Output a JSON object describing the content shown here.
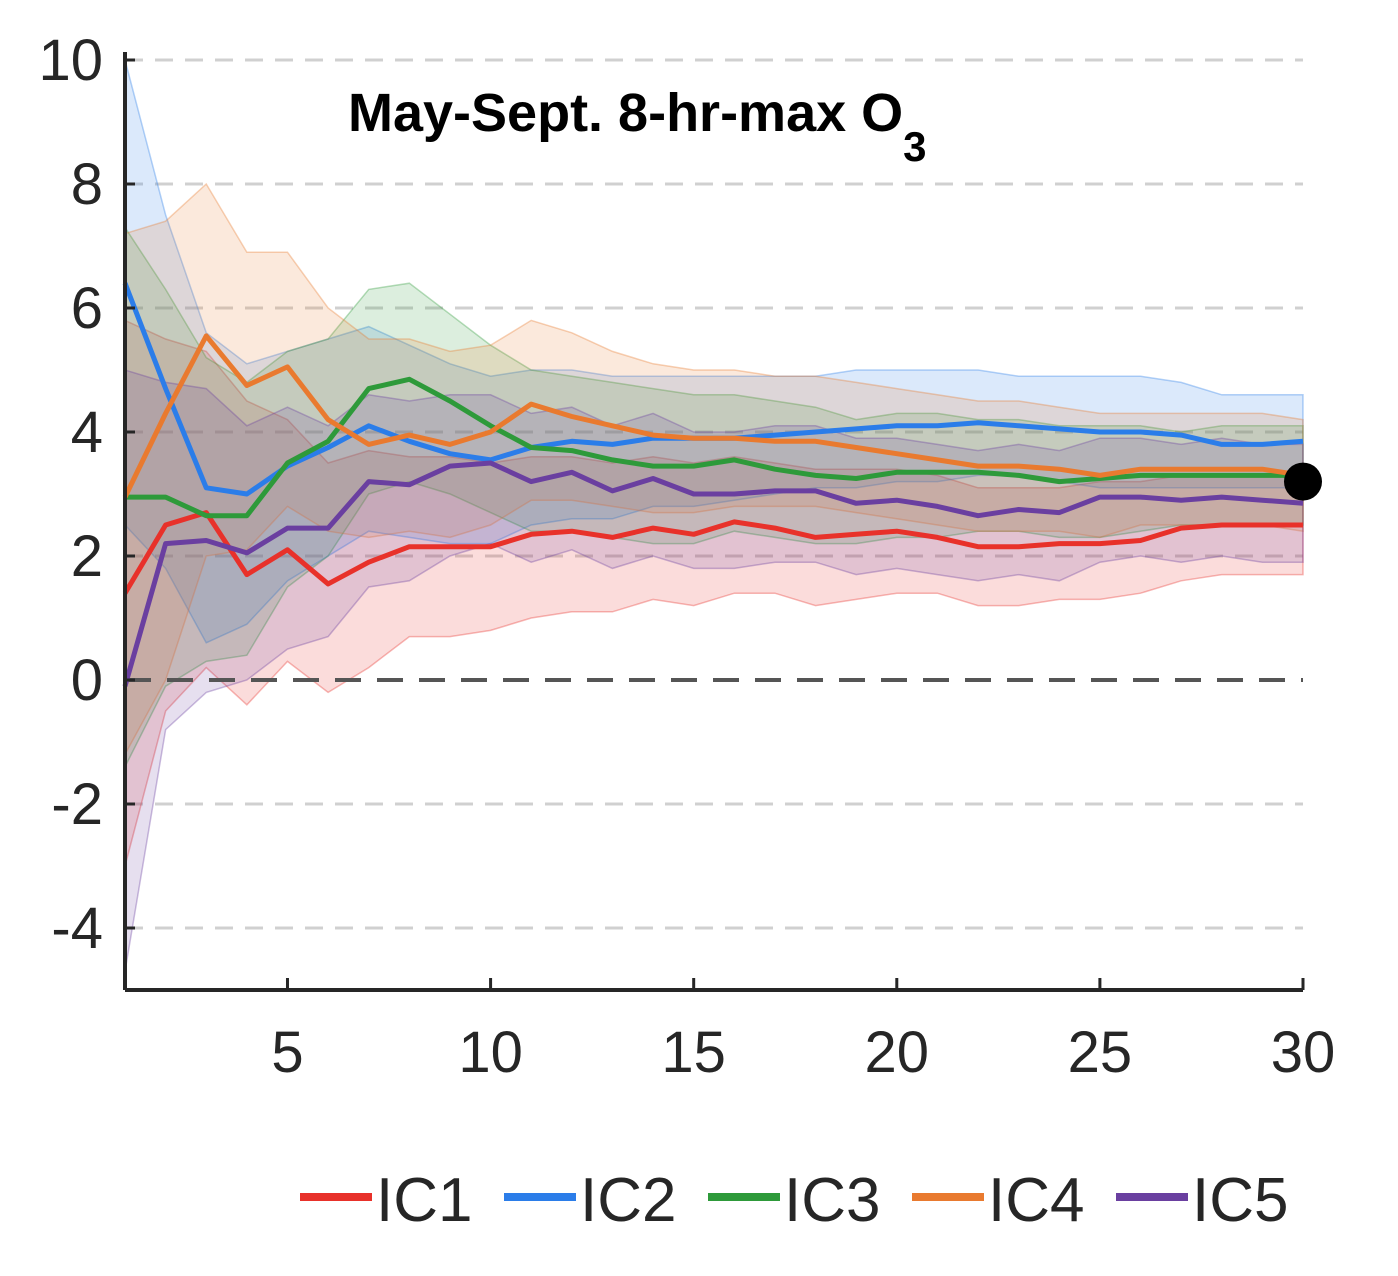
{
  "chart_data": {
    "type": "line",
    "title": "May-Sept. 8-hr-max O",
    "title_subscript": "3",
    "xlim": [
      1,
      30
    ],
    "ylim": [
      -5,
      10
    ],
    "x_ticks": [
      5,
      10,
      15,
      20,
      25,
      30
    ],
    "y_ticks": [
      10,
      8,
      6,
      4,
      2,
      0,
      -2,
      -4
    ],
    "x_tick_labels": [
      "5",
      "10",
      "15",
      "20",
      "25",
      "30"
    ],
    "y_tick_labels": [
      "10",
      "8",
      "6",
      "4",
      "2",
      "0",
      "-2",
      "-4"
    ],
    "grid": "horizontal dashed",
    "legend_position": "bottom",
    "x": [
      1,
      2,
      3,
      4,
      5,
      6,
      7,
      8,
      9,
      10,
      11,
      12,
      13,
      14,
      15,
      16,
      17,
      18,
      19,
      20,
      21,
      22,
      23,
      24,
      25,
      26,
      27,
      28,
      29,
      30
    ],
    "series": [
      {
        "name": "IC1",
        "color": "#e8312a",
        "values": [
          1.4,
          2.5,
          2.7,
          1.7,
          2.1,
          1.55,
          1.9,
          2.15,
          2.15,
          2.15,
          2.35,
          2.4,
          2.3,
          2.45,
          2.35,
          2.55,
          2.45,
          2.3,
          2.35,
          2.4,
          2.3,
          2.15,
          2.15,
          2.2,
          2.2,
          2.25,
          2.45,
          2.5,
          2.5,
          2.5
        ],
        "band_upper": [
          5.8,
          5.5,
          5.3,
          4.5,
          4.2,
          3.5,
          3.7,
          3.6,
          3.6,
          3.5,
          3.6,
          3.6,
          3.5,
          3.6,
          3.5,
          3.6,
          3.5,
          3.4,
          3.4,
          3.4,
          3.3,
          3.1,
          3.1,
          3.1,
          3.2,
          3.2,
          3.3,
          3.3,
          3.3,
          3.3
        ],
        "band_lower": [
          -3.0,
          -0.5,
          0.2,
          -0.4,
          0.3,
          -0.2,
          0.2,
          0.7,
          0.7,
          0.8,
          1.0,
          1.1,
          1.1,
          1.3,
          1.2,
          1.4,
          1.4,
          1.2,
          1.3,
          1.4,
          1.4,
          1.2,
          1.2,
          1.3,
          1.3,
          1.4,
          1.6,
          1.7,
          1.7,
          1.7
        ]
      },
      {
        "name": "IC2",
        "color": "#2b7de9",
        "values": [
          6.4,
          4.7,
          3.1,
          3.0,
          3.45,
          3.75,
          4.1,
          3.85,
          3.65,
          3.55,
          3.75,
          3.85,
          3.8,
          3.9,
          3.9,
          3.9,
          3.95,
          4.0,
          4.05,
          4.1,
          4.1,
          4.15,
          4.1,
          4.05,
          4.0,
          4.0,
          3.95,
          3.8,
          3.8,
          3.85
        ],
        "band_upper": [
          10.0,
          7.5,
          5.6,
          5.1,
          5.3,
          5.5,
          5.7,
          5.4,
          5.1,
          4.9,
          5.0,
          5.0,
          4.9,
          4.9,
          4.9,
          4.9,
          4.9,
          4.9,
          5.0,
          5.0,
          5.0,
          5.0,
          4.9,
          4.9,
          4.9,
          4.9,
          4.8,
          4.6,
          4.6,
          4.6
        ],
        "band_lower": [
          2.5,
          1.8,
          0.6,
          0.9,
          1.6,
          2.0,
          2.4,
          2.3,
          2.2,
          2.2,
          2.5,
          2.6,
          2.6,
          2.8,
          2.8,
          2.9,
          3.0,
          3.1,
          3.1,
          3.2,
          3.2,
          3.3,
          3.3,
          3.2,
          3.1,
          3.1,
          3.1,
          3.1,
          3.1,
          3.1
        ]
      },
      {
        "name": "IC3",
        "color": "#2e9a3a",
        "values": [
          2.95,
          2.95,
          2.65,
          2.65,
          3.5,
          3.85,
          4.7,
          4.85,
          4.5,
          4.1,
          3.75,
          3.7,
          3.55,
          3.45,
          3.45,
          3.55,
          3.4,
          3.3,
          3.25,
          3.35,
          3.35,
          3.35,
          3.3,
          3.2,
          3.25,
          3.3,
          3.3,
          3.3,
          3.3,
          3.3
        ],
        "band_upper": [
          7.3,
          6.3,
          5.2,
          4.8,
          5.3,
          5.5,
          6.3,
          6.4,
          5.9,
          5.4,
          5.0,
          4.9,
          4.8,
          4.7,
          4.6,
          4.6,
          4.5,
          4.4,
          4.2,
          4.3,
          4.3,
          4.2,
          4.2,
          4.1,
          4.1,
          4.1,
          4.0,
          4.1,
          4.1,
          4.1
        ],
        "band_lower": [
          -1.4,
          -0.1,
          0.3,
          0.4,
          1.5,
          2.0,
          3.0,
          3.2,
          3.0,
          2.7,
          2.4,
          2.4,
          2.3,
          2.2,
          2.2,
          2.4,
          2.3,
          2.2,
          2.2,
          2.3,
          2.3,
          2.4,
          2.4,
          2.3,
          2.3,
          2.4,
          2.5,
          2.5,
          2.5,
          2.5
        ]
      },
      {
        "name": "IC4",
        "color": "#e97a2f",
        "values": [
          2.95,
          4.3,
          5.55,
          4.75,
          5.05,
          4.2,
          3.8,
          3.95,
          3.8,
          4.0,
          4.45,
          4.25,
          4.1,
          3.95,
          3.9,
          3.9,
          3.85,
          3.85,
          3.75,
          3.65,
          3.55,
          3.45,
          3.45,
          3.4,
          3.3,
          3.4,
          3.4,
          3.4,
          3.4,
          3.3
        ],
        "band_upper": [
          7.2,
          7.4,
          8.0,
          6.9,
          6.9,
          6.0,
          5.5,
          5.5,
          5.3,
          5.4,
          5.8,
          5.6,
          5.3,
          5.1,
          5.0,
          5.0,
          4.9,
          4.9,
          4.8,
          4.7,
          4.6,
          4.5,
          4.5,
          4.4,
          4.3,
          4.3,
          4.3,
          4.3,
          4.3,
          4.2
        ],
        "band_lower": [
          -1.2,
          0.0,
          2.0,
          2.1,
          2.8,
          2.4,
          2.3,
          2.4,
          2.3,
          2.5,
          2.9,
          2.9,
          2.8,
          2.7,
          2.7,
          2.8,
          2.8,
          2.8,
          2.7,
          2.6,
          2.5,
          2.4,
          2.4,
          2.4,
          2.3,
          2.5,
          2.5,
          2.5,
          2.5,
          2.4
        ]
      },
      {
        "name": "IC5",
        "color": "#6a3fa0",
        "values": [
          -0.1,
          2.2,
          2.25,
          2.05,
          2.45,
          2.45,
          3.2,
          3.15,
          3.45,
          3.5,
          3.2,
          3.35,
          3.05,
          3.25,
          3.0,
          3.0,
          3.05,
          3.05,
          2.85,
          2.9,
          2.8,
          2.65,
          2.75,
          2.7,
          2.95,
          2.95,
          2.9,
          2.95,
          2.9,
          2.85
        ],
        "band_upper": [
          5.0,
          4.8,
          4.7,
          4.1,
          4.4,
          4.1,
          4.6,
          4.5,
          4.6,
          4.6,
          4.3,
          4.4,
          4.1,
          4.3,
          4.0,
          4.0,
          4.1,
          4.1,
          3.9,
          3.9,
          3.8,
          3.7,
          3.8,
          3.7,
          3.9,
          3.9,
          3.8,
          3.9,
          3.8,
          3.8
        ],
        "band_lower": [
          -4.7,
          -0.8,
          -0.2,
          0.0,
          0.5,
          0.7,
          1.5,
          1.6,
          2.0,
          2.2,
          1.9,
          2.1,
          1.8,
          2.0,
          1.8,
          1.8,
          1.9,
          1.9,
          1.7,
          1.8,
          1.7,
          1.6,
          1.7,
          1.6,
          1.9,
          2.0,
          1.9,
          2.0,
          1.9,
          1.9
        ]
      }
    ],
    "marker": {
      "x": 30,
      "y": 3.2,
      "color": "#000000"
    }
  }
}
